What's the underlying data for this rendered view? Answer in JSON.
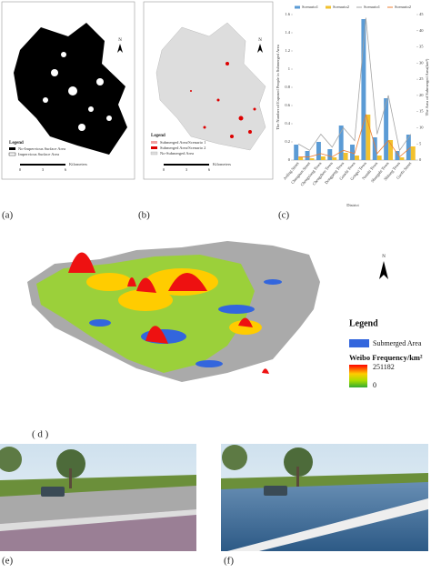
{
  "panels": {
    "a": {
      "label": "(a)",
      "legend_title": "Legend",
      "legend_items": [
        "No-Impervious Surface Area",
        "Impervious Surface Area"
      ],
      "north": "N",
      "scale_unit": "Kilometers",
      "scale_ticks": [
        "0",
        "3",
        "6"
      ]
    },
    "b": {
      "label": "(b)",
      "legend_title": "Legend",
      "legend_items": [
        "Submerged Area/Scenario 1",
        "Submerged Area/Scenario 2",
        "No-Submerged Area"
      ],
      "north": "N",
      "scale_unit": "Kilometers",
      "scale_ticks": [
        "0",
        "3",
        "6"
      ]
    },
    "c": {
      "label": "(c)"
    },
    "d": {
      "label": "( d )",
      "north": "N",
      "legend_title": "Legend",
      "legend_area": "Submerged Area",
      "legend_freq": "Weibo Frequency/km²",
      "freq_max": "251182",
      "freq_min": "0"
    },
    "e": {
      "label": "(e)"
    },
    "f": {
      "label": "(f)"
    }
  },
  "chart_data": {
    "type": "bar",
    "x_label": "District",
    "y_label": "The Number of Exposed People in Submerged Area",
    "y2_label": "The Area of Submerged Area(km²)",
    "categories": [
      "Aoling Street",
      "Chengnan Street",
      "Chengxiang Town",
      "Chengzhou Town",
      "Dongpeng Town",
      "Ganchi Town",
      "Gongxi Town",
      "Nanshi Town",
      "Shangshi Town",
      "Shitang Town",
      "Gaofu Street"
    ],
    "series": [
      {
        "name": "Scenario1",
        "color": "#5b9bd5",
        "values": [
          0.17,
          0.1,
          0.2,
          0.12,
          0.38,
          0.17,
          1.55,
          0.25,
          0.68,
          0.1,
          0.28
        ]
      },
      {
        "name": "Scenario2",
        "color": "#f2c12e",
        "values": [
          0.03,
          0.02,
          0.04,
          0.03,
          0.08,
          0.05,
          0.5,
          0.05,
          0.22,
          0.03,
          0.15
        ]
      },
      {
        "name": "Scenario1",
        "color": "#a5a5a5",
        "axis": "y2",
        "values": [
          5,
          3,
          8,
          4,
          10,
          6,
          44,
          8,
          20,
          3,
          8
        ]
      },
      {
        "name": "Scenario2",
        "color": "#ed7d31",
        "axis": "y2",
        "values": [
          1,
          1,
          2,
          1,
          3,
          2,
          14,
          2,
          6,
          1,
          4
        ]
      }
    ],
    "ylim": [
      0,
      1.6
    ],
    "yticks": [
      0,
      0.2,
      0.4,
      0.6,
      0.8,
      1,
      1.2,
      1.4,
      1.6
    ],
    "y2lim": [
      0,
      45
    ],
    "y2ticks": [
      0,
      5,
      10,
      15,
      20,
      25,
      30,
      35,
      40,
      45
    ],
    "grid": false
  }
}
